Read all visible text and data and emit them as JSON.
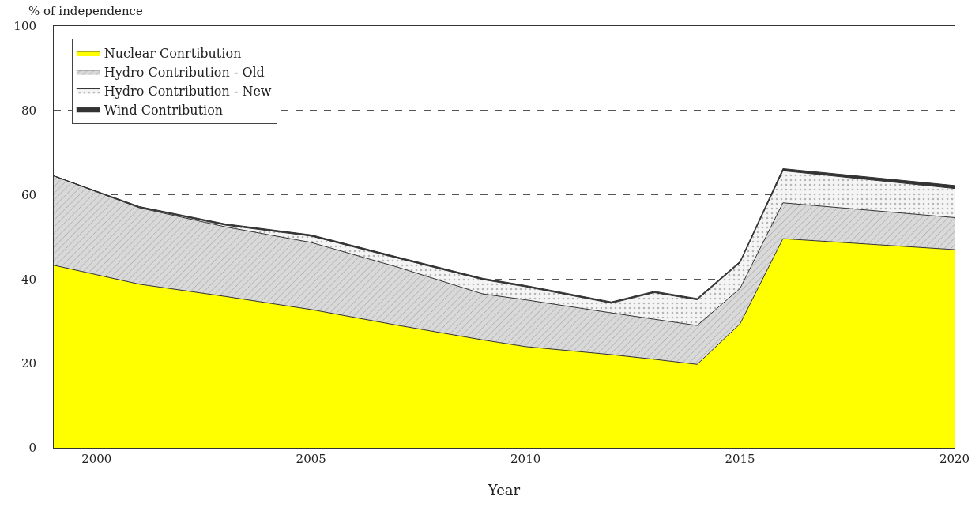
{
  "chart_data": {
    "type": "area",
    "stacked": true,
    "xlabel": "Year",
    "ylabel": "% of independence",
    "x": [
      1999,
      2001,
      2003,
      2005,
      2007,
      2009,
      2010,
      2012,
      2013,
      2014,
      2015,
      2016,
      2020
    ],
    "series": [
      {
        "name": "Nuclear Conrtibution",
        "color": "#ffff00",
        "values": [
          43.3,
          38.8,
          35.9,
          32.8,
          29.1,
          25.6,
          24.0,
          22.1,
          21.0,
          19.8,
          29.4,
          49.6,
          47.0
        ]
      },
      {
        "name": "Hydro Contribution - Old",
        "color": "#d9d9d9",
        "values": [
          21.2,
          18.1,
          16.5,
          15.9,
          13.8,
          10.9,
          11.1,
          9.9,
          9.5,
          9.2,
          8.4,
          8.5,
          7.6
        ]
      },
      {
        "name": "Hydro Contribution - New",
        "color": "#f4f4f4",
        "values": [
          0,
          0.1,
          0.4,
          1.5,
          2.1,
          3.4,
          3.1,
          2.3,
          6.3,
          6.1,
          6.1,
          7.6,
          6.9
        ]
      },
      {
        "name": "Wind Contribution",
        "color": "#333333",
        "values": [
          0,
          0.2,
          0.3,
          0.3,
          0.3,
          0.3,
          0.3,
          0.3,
          0.3,
          0.3,
          0.3,
          0.5,
          0.7
        ]
      }
    ],
    "xlim": [
      1999,
      2020
    ],
    "xticks": [
      2000,
      2005,
      2010,
      2015,
      2020
    ],
    "ylim": [
      0,
      100
    ],
    "yticks": [
      0,
      20,
      40,
      60,
      80,
      100
    ],
    "grid": "y",
    "line_style": "dashed",
    "legend": "top left"
  }
}
